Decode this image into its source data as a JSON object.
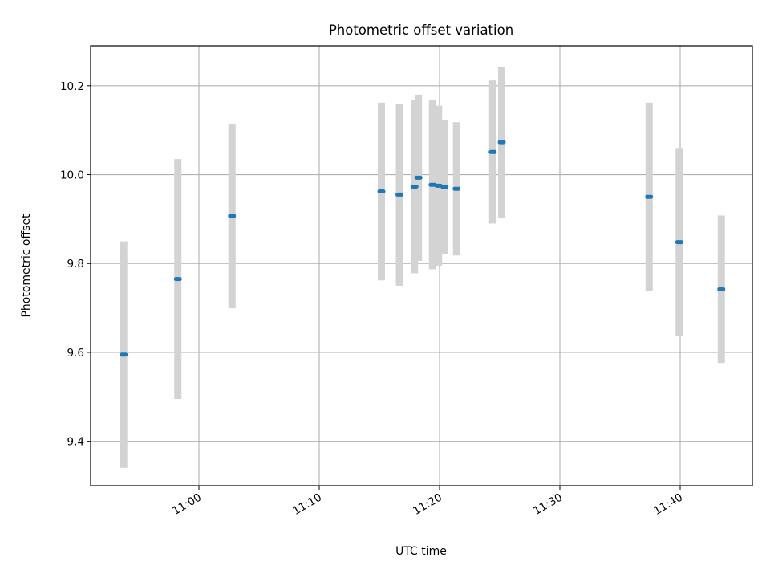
{
  "chart_data": {
    "type": "scatter",
    "title": "Photometric offset variation",
    "xlabel": "UTC time",
    "ylabel": "Photometric offset",
    "grid": true,
    "xlim": [
      "10:51:00",
      "11:46:00"
    ],
    "ylim": [
      9.3,
      10.29
    ],
    "x_ticks": [
      "11:00",
      "11:10",
      "11:20",
      "11:30",
      "11:40"
    ],
    "y_ticks": [
      "9.4",
      "9.6",
      "9.8",
      "10.0",
      "10.2"
    ],
    "series": [
      {
        "color": "#1f77b4",
        "error_color": "#d3d3d3",
        "points": [
          {
            "t": "10:53:45",
            "y": 9.595,
            "err": 0.255
          },
          {
            "t": "10:58:15",
            "y": 9.765,
            "err": 0.27
          },
          {
            "t": "11:02:45",
            "y": 9.907,
            "err": 0.208
          },
          {
            "t": "11:15:10",
            "y": 9.962,
            "err": 0.2
          },
          {
            "t": "11:16:40",
            "y": 9.955,
            "err": 0.205
          },
          {
            "t": "11:17:55",
            "y": 9.973,
            "err": 0.195
          },
          {
            "t": "11:18:15",
            "y": 9.993,
            "err": 0.187
          },
          {
            "t": "11:19:25",
            "y": 9.977,
            "err": 0.19
          },
          {
            "t": "11:19:55",
            "y": 9.975,
            "err": 0.18
          },
          {
            "t": "11:20:25",
            "y": 9.972,
            "err": 0.15
          },
          {
            "t": "11:21:25",
            "y": 9.968,
            "err": 0.15
          },
          {
            "t": "11:24:25",
            "y": 10.051,
            "err": 0.161
          },
          {
            "t": "11:25:10",
            "y": 10.073,
            "err": 0.17
          },
          {
            "t": "11:37:25",
            "y": 9.95,
            "err": 0.212
          },
          {
            "t": "11:39:55",
            "y": 9.848,
            "err": 0.212
          },
          {
            "t": "11:43:25",
            "y": 9.742,
            "err": 0.166
          }
        ]
      }
    ]
  }
}
